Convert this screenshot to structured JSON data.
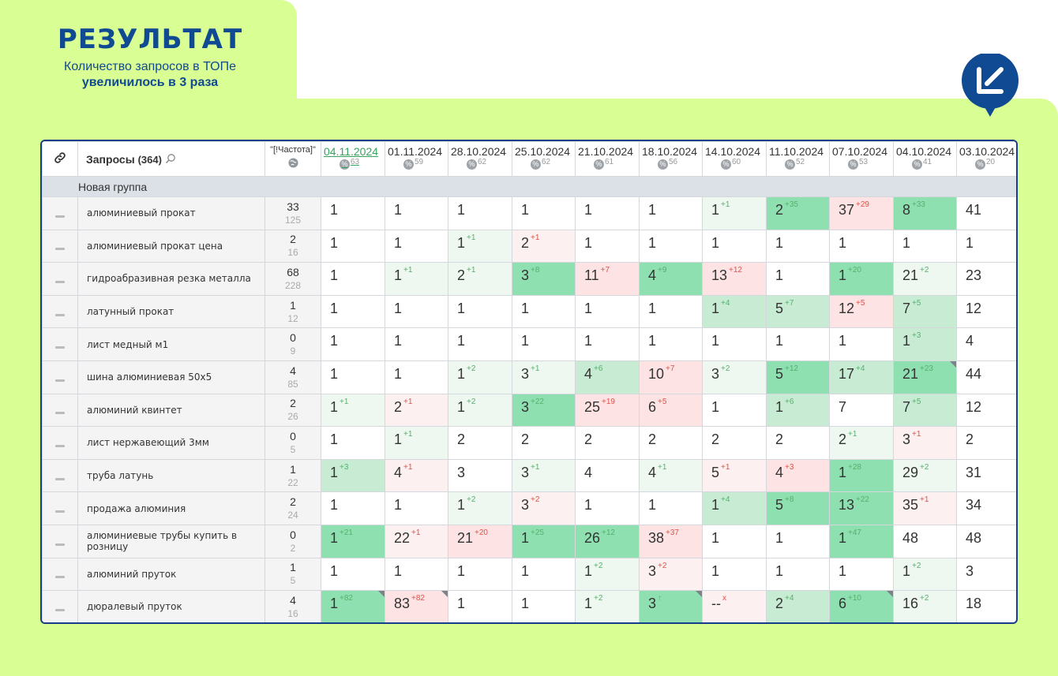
{
  "header": {
    "title": "РЕЗУЛЬТАТ",
    "line1": "Количество запросов в ТОПе",
    "line2": "увеличилось в 3 раза"
  },
  "colors": {
    "brand_blue": "#0f4a93",
    "lime": "#d9fe93",
    "green_strong": "#8ee0b0",
    "green_medium": "#c7ecd3",
    "green_light": "#eef8f0",
    "red_medium": "#fde3e3",
    "red_light": "#fdf0f0"
  },
  "table": {
    "link_icon": "link-icon",
    "queries_label": "Запросы",
    "queries_count": "(364)",
    "search_icon": "search-icon",
    "freq_label": "\"[!Частота]\"",
    "freq_icon": "globe-icon",
    "dates": [
      {
        "label": "04.11.2024",
        "vis": "63",
        "active": true
      },
      {
        "label": "01.11.2024",
        "vis": "59"
      },
      {
        "label": "28.10.2024",
        "vis": "62"
      },
      {
        "label": "25.10.2024",
        "vis": "62"
      },
      {
        "label": "21.10.2024",
        "vis": "61"
      },
      {
        "label": "18.10.2024",
        "vis": "56"
      },
      {
        "label": "14.10.2024",
        "vis": "60"
      },
      {
        "label": "11.10.2024",
        "vis": "52"
      },
      {
        "label": "07.10.2024",
        "vis": "53"
      },
      {
        "label": "04.10.2024",
        "vis": "41"
      },
      {
        "label": "03.10.2024",
        "vis": "20"
      }
    ],
    "group_name": "Новая группа",
    "rows": [
      {
        "query": "алюминиевый прокат",
        "freq": "33",
        "freq2": "125",
        "cells": [
          {
            "v": "1"
          },
          {
            "v": "1"
          },
          {
            "v": "1"
          },
          {
            "v": "1"
          },
          {
            "v": "1"
          },
          {
            "v": "1"
          },
          {
            "v": "1",
            "d": "+1",
            "bg": "g1"
          },
          {
            "v": "2",
            "d": "+35",
            "bg": "g3"
          },
          {
            "v": "37",
            "d": "+29",
            "dn": true,
            "bg": "r2"
          },
          {
            "v": "8",
            "d": "+33",
            "bg": "g3"
          },
          {
            "v": "41"
          }
        ]
      },
      {
        "query": "алюминиевый прокат цена",
        "freq": "2",
        "freq2": "16",
        "cells": [
          {
            "v": "1"
          },
          {
            "v": "1"
          },
          {
            "v": "1",
            "d": "+1",
            "bg": "g1"
          },
          {
            "v": "2",
            "d": "+1",
            "dn": true,
            "bg": "r1"
          },
          {
            "v": "1"
          },
          {
            "v": "1"
          },
          {
            "v": "1"
          },
          {
            "v": "1"
          },
          {
            "v": "1"
          },
          {
            "v": "1"
          },
          {
            "v": "1"
          }
        ]
      },
      {
        "query": "гидроабразивная резка металла",
        "freq": "68",
        "freq2": "228",
        "cells": [
          {
            "v": "1"
          },
          {
            "v": "1",
            "d": "+1",
            "bg": "g1"
          },
          {
            "v": "2",
            "d": "+1",
            "bg": "g1"
          },
          {
            "v": "3",
            "d": "+8",
            "bg": "g3"
          },
          {
            "v": "11",
            "d": "+7",
            "dn": true,
            "bg": "r2"
          },
          {
            "v": "4",
            "d": "+9",
            "bg": "g3"
          },
          {
            "v": "13",
            "d": "+12",
            "dn": true,
            "bg": "r2"
          },
          {
            "v": "1"
          },
          {
            "v": "1",
            "d": "+20",
            "bg": "g3"
          },
          {
            "v": "21",
            "d": "+2",
            "bg": "g1"
          },
          {
            "v": "23"
          }
        ]
      },
      {
        "query": "латунный прокат",
        "freq": "1",
        "freq2": "12",
        "cells": [
          {
            "v": "1"
          },
          {
            "v": "1"
          },
          {
            "v": "1"
          },
          {
            "v": "1"
          },
          {
            "v": "1"
          },
          {
            "v": "1"
          },
          {
            "v": "1",
            "d": "+4",
            "bg": "g2"
          },
          {
            "v": "5",
            "d": "+7",
            "bg": "g2"
          },
          {
            "v": "12",
            "d": "+5",
            "dn": true,
            "bg": "r2"
          },
          {
            "v": "7",
            "d": "+5",
            "bg": "g2"
          },
          {
            "v": "12"
          }
        ]
      },
      {
        "query": "лист медный м1",
        "freq": "0",
        "freq2": "9",
        "cells": [
          {
            "v": "1"
          },
          {
            "v": "1"
          },
          {
            "v": "1"
          },
          {
            "v": "1"
          },
          {
            "v": "1"
          },
          {
            "v": "1"
          },
          {
            "v": "1"
          },
          {
            "v": "1"
          },
          {
            "v": "1"
          },
          {
            "v": "1",
            "d": "+3",
            "bg": "g2"
          },
          {
            "v": "4"
          }
        ]
      },
      {
        "query": "шина алюминиевая 50х5",
        "freq": "4",
        "freq2": "85",
        "cells": [
          {
            "v": "1"
          },
          {
            "v": "1"
          },
          {
            "v": "1",
            "d": "+2",
            "bg": "g1"
          },
          {
            "v": "3",
            "d": "+1",
            "bg": "g1"
          },
          {
            "v": "4",
            "d": "+6",
            "bg": "g2"
          },
          {
            "v": "10",
            "d": "+7",
            "dn": true,
            "bg": "r2"
          },
          {
            "v": "3",
            "d": "+2",
            "bg": "g1"
          },
          {
            "v": "5",
            "d": "+12",
            "bg": "g3"
          },
          {
            "v": "17",
            "d": "+4",
            "bg": "g2"
          },
          {
            "v": "21",
            "d": "+23",
            "bg": "g3",
            "corner": true
          },
          {
            "v": "44"
          }
        ]
      },
      {
        "query": "алюминий квинтет",
        "freq": "2",
        "freq2": "26",
        "cells": [
          {
            "v": "1",
            "d": "+1",
            "bg": "g1"
          },
          {
            "v": "2",
            "d": "+1",
            "dn": true,
            "bg": "r1"
          },
          {
            "v": "1",
            "d": "+2",
            "bg": "g1"
          },
          {
            "v": "3",
            "d": "+22",
            "bg": "g3"
          },
          {
            "v": "25",
            "d": "+19",
            "dn": true,
            "bg": "r2"
          },
          {
            "v": "6",
            "d": "+5",
            "dn": true,
            "bg": "r2"
          },
          {
            "v": "1"
          },
          {
            "v": "1",
            "d": "+6",
            "bg": "g2"
          },
          {
            "v": "7"
          },
          {
            "v": "7",
            "d": "+5",
            "bg": "g2"
          },
          {
            "v": "12"
          }
        ]
      },
      {
        "query": "лист нержавеющий 3мм",
        "freq": "0",
        "freq2": "5",
        "cells": [
          {
            "v": "1"
          },
          {
            "v": "1",
            "d": "+1",
            "bg": "g1"
          },
          {
            "v": "2"
          },
          {
            "v": "2"
          },
          {
            "v": "2"
          },
          {
            "v": "2"
          },
          {
            "v": "2"
          },
          {
            "v": "2"
          },
          {
            "v": "2",
            "d": "+1",
            "bg": "g1"
          },
          {
            "v": "3",
            "d": "+1",
            "dn": true,
            "bg": "r1"
          },
          {
            "v": "2"
          }
        ]
      },
      {
        "query": "труба латунь",
        "freq": "1",
        "freq2": "22",
        "cells": [
          {
            "v": "1",
            "d": "+3",
            "bg": "g2"
          },
          {
            "v": "4",
            "d": "+1",
            "dn": true,
            "bg": "r1"
          },
          {
            "v": "3"
          },
          {
            "v": "3",
            "d": "+1",
            "bg": "g1"
          },
          {
            "v": "4"
          },
          {
            "v": "4",
            "d": "+1",
            "bg": "g1"
          },
          {
            "v": "5",
            "d": "+1",
            "dn": true,
            "bg": "r1"
          },
          {
            "v": "4",
            "d": "+3",
            "dn": true,
            "bg": "r2"
          },
          {
            "v": "1",
            "d": "+28",
            "bg": "g3"
          },
          {
            "v": "29",
            "d": "+2",
            "bg": "g1"
          },
          {
            "v": "31"
          }
        ]
      },
      {
        "query": "продажа алюминия",
        "freq": "2",
        "freq2": "24",
        "cells": [
          {
            "v": "1"
          },
          {
            "v": "1"
          },
          {
            "v": "1",
            "d": "+2",
            "bg": "g1"
          },
          {
            "v": "3",
            "d": "+2",
            "dn": true,
            "bg": "r1"
          },
          {
            "v": "1"
          },
          {
            "v": "1"
          },
          {
            "v": "1",
            "d": "+4",
            "bg": "g2"
          },
          {
            "v": "5",
            "d": "+8",
            "bg": "g3"
          },
          {
            "v": "13",
            "d": "+22",
            "bg": "g3"
          },
          {
            "v": "35",
            "d": "+1",
            "dn": true,
            "bg": "r1"
          },
          {
            "v": "34"
          }
        ]
      },
      {
        "query": "алюминиевые трубы купить в розницу",
        "freq": "0",
        "freq2": "2",
        "cells": [
          {
            "v": "1",
            "d": "+21",
            "bg": "g3"
          },
          {
            "v": "22",
            "d": "+1",
            "dn": true,
            "bg": "r1"
          },
          {
            "v": "21",
            "d": "+20",
            "dn": true,
            "bg": "r2"
          },
          {
            "v": "1",
            "d": "+25",
            "bg": "g3"
          },
          {
            "v": "26",
            "d": "+12",
            "bg": "g3"
          },
          {
            "v": "38",
            "d": "+37",
            "dn": true,
            "bg": "r2"
          },
          {
            "v": "1"
          },
          {
            "v": "1"
          },
          {
            "v": "1",
            "d": "+47",
            "bg": "g3"
          },
          {
            "v": "48"
          },
          {
            "v": "48"
          }
        ]
      },
      {
        "query": "алюминий пруток",
        "freq": "1",
        "freq2": "5",
        "cells": [
          {
            "v": "1"
          },
          {
            "v": "1"
          },
          {
            "v": "1"
          },
          {
            "v": "1"
          },
          {
            "v": "1",
            "d": "+2",
            "bg": "g1"
          },
          {
            "v": "3",
            "d": "+2",
            "dn": true,
            "bg": "r1"
          },
          {
            "v": "1"
          },
          {
            "v": "1"
          },
          {
            "v": "1"
          },
          {
            "v": "1",
            "d": "+2",
            "bg": "g1"
          },
          {
            "v": "3"
          }
        ]
      },
      {
        "query": "дюралевый пруток",
        "freq": "4",
        "freq2": "16",
        "cells": [
          {
            "v": "1",
            "d": "+82",
            "bg": "g3",
            "corner": true
          },
          {
            "v": "83",
            "d": "+82",
            "dn": true,
            "bg": "r2",
            "corner": true
          },
          {
            "v": "1"
          },
          {
            "v": "1"
          },
          {
            "v": "1",
            "d": "+2",
            "bg": "g1"
          },
          {
            "v": "3",
            "d": "↑",
            "bg": "g3",
            "corner": true
          },
          {
            "v": "--",
            "d": "x",
            "dn": true,
            "bg": "r1"
          },
          {
            "v": "2",
            "d": "+4",
            "bg": "g2"
          },
          {
            "v": "6",
            "d": "+10",
            "bg": "g3",
            "corner": true
          },
          {
            "v": "16",
            "d": "+2",
            "bg": "g1"
          },
          {
            "v": "18"
          }
        ]
      }
    ]
  }
}
